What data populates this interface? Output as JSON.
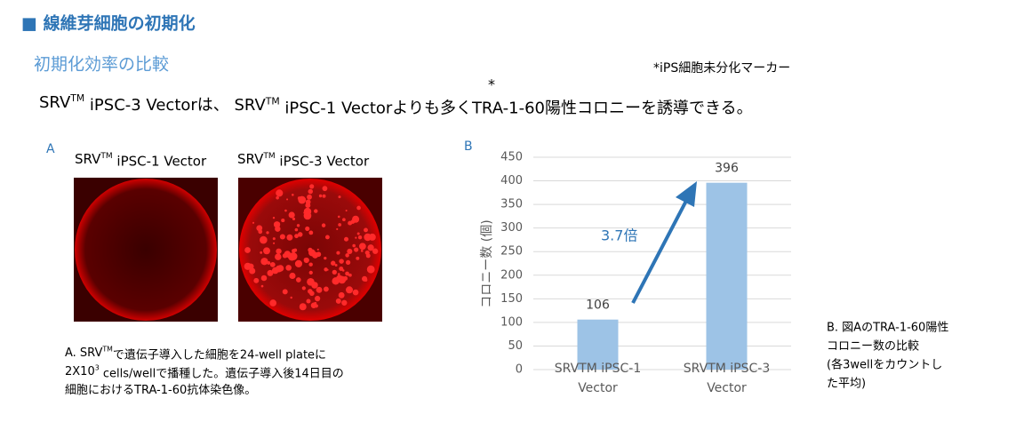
{
  "header": {
    "title": "■ 線維芽細胞の初期化",
    "subtitle": "初期化効率の比較",
    "note": "*iPS細胞未分化マーカー",
    "asterisk": "*",
    "sentence": [
      "SRV",
      "TM",
      " iPSC-3 Vectorは、 SRV",
      "TM",
      " iPSC-1 Vectorよりも多くTRA-1-60陽性コロニーを誘導できる。"
    ]
  },
  "panel_a": {
    "label": "A",
    "images": [
      [
        "SRV",
        "TM",
        " iPSC-1 Vector"
      ],
      [
        "SRV",
        "TM",
        " iPSC-3 Vector"
      ]
    ],
    "caption": [
      [
        "A. SRV",
        "TM",
        "で遺伝子導入した細胞を24-well plateに"
      ],
      [
        "2X10",
        "3",
        " cells/wellで播種した。遺伝子導入後14日目の"
      ],
      [
        "細胞におけるTRA-1-60抗体染色像。"
      ]
    ]
  },
  "panel_b": {
    "label": "B",
    "caption": [
      "B.  図AのTRA-1-60陽性",
      "コロニー数の比較",
      "(各3wellをカウントし",
      "た平均)"
    ]
  },
  "chart_data": {
    "type": "bar",
    "y_label": "コロニー数 (個)",
    "categories": [
      "SRVTM iPSC-1 Vector",
      "SRVTM iPSC-3 Vector"
    ],
    "values": [
      106,
      396
    ],
    "color": "#9dc3e6",
    "ylim": [
      0,
      450
    ],
    "yticks": [
      0,
      50,
      100,
      150,
      200,
      250,
      300,
      350,
      400,
      450
    ],
    "grid": true,
    "annotation": "3.7倍"
  }
}
